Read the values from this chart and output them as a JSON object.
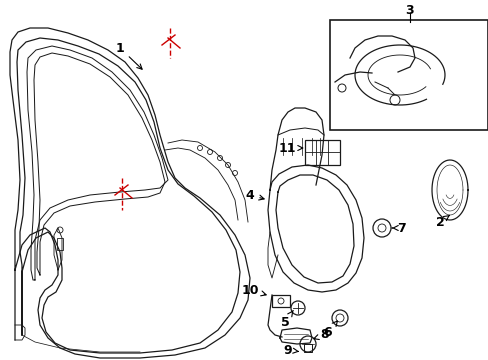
{
  "background_color": "#ffffff",
  "line_color": "#1a1a1a",
  "red_color": "#cc0000",
  "fig_w": 4.89,
  "fig_h": 3.6,
  "dpi": 100
}
